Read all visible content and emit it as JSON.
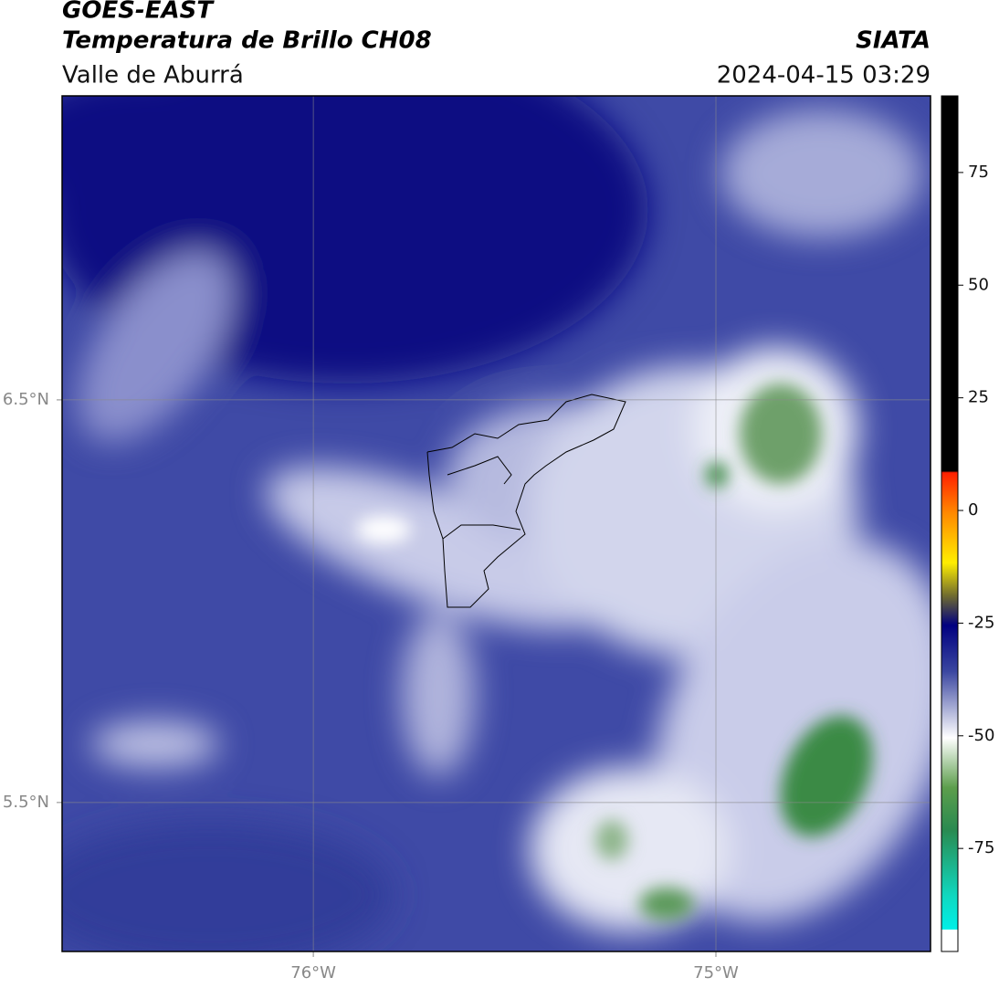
{
  "header": {
    "title": "GOES-EAST",
    "subtitle": "Temperatura de Brillo CH08",
    "region": "Valle de Aburrá",
    "source": "SIATA",
    "datetime": "2024-04-15 03:29"
  },
  "map": {
    "xlim": [
      -76.624,
      -74.467
    ],
    "ylim": [
      5.13,
      7.255
    ],
    "xticks": [
      {
        "value": -76,
        "label": "76°W"
      },
      {
        "value": -75,
        "label": "75°W"
      }
    ],
    "yticks": [
      {
        "value": 6.5,
        "label": "6.5°N"
      },
      {
        "value": 5.5,
        "label": "5.5°N"
      }
    ]
  },
  "colorbar": {
    "lim": [
      -93,
      92
    ],
    "ticks": [
      75,
      50,
      25,
      0,
      -25,
      -50,
      -75
    ]
  }
}
